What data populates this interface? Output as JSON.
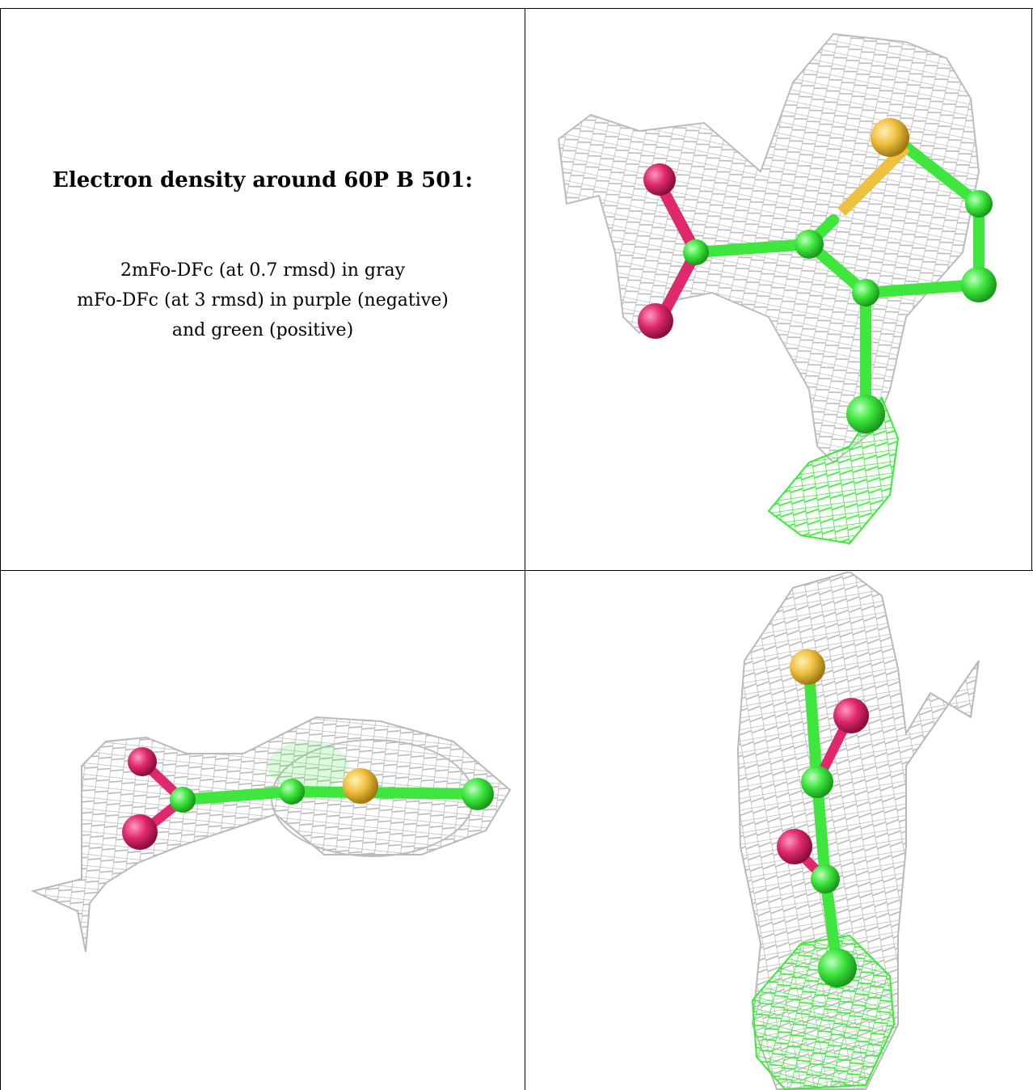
{
  "caption": {
    "title": "Electron density around 60P B 501:",
    "line1": "2mFo-DFc (at 0.7 rmsd) in gray",
    "line2": "mFo-DFc (at 3 rmsd) in purple (negative)",
    "line3": "and green (positive)"
  },
  "colors": {
    "mesh_gray": "#b9b9b9",
    "carbon_green": "#3ee63e",
    "oxygen_red": "#e0286e",
    "sulfur_yellow": "#f0c040",
    "positive_mesh": "#33ee33"
  }
}
